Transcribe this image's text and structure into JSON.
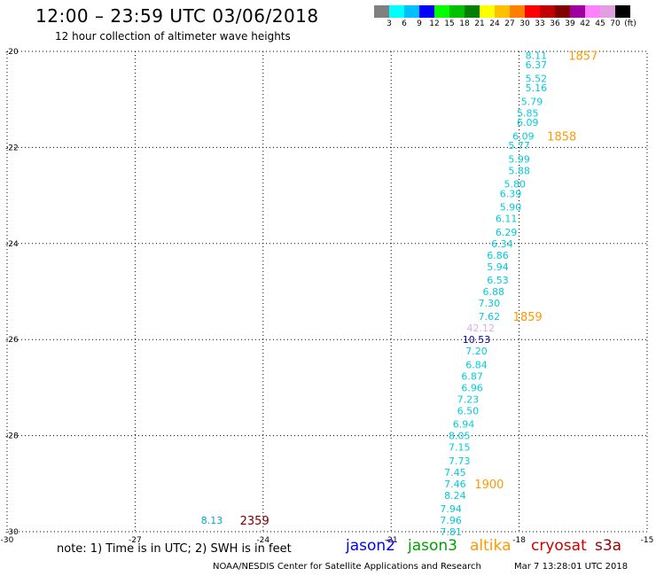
{
  "header": {
    "title": "12:00 – 23:59 UTC 03/06/2018",
    "subtitle": "12 hour collection of altimeter wave heights"
  },
  "legend": {
    "colors": [
      "#808080",
      "#00ffff",
      "#00c0ff",
      "#0000ff",
      "#00ff00",
      "#00c000",
      "#008000",
      "#ffff00",
      "#ffc000",
      "#ff8000",
      "#ff0000",
      "#c00000",
      "#800000",
      "#a000a0",
      "#ff80ff",
      "#e0a0e0",
      "#000000"
    ],
    "labels": [
      "3",
      "6",
      "9",
      "12",
      "15",
      "18",
      "21",
      "24",
      "27",
      "30",
      "33",
      "36",
      "39",
      "42",
      "45",
      "70",
      "(ft)"
    ]
  },
  "footer": {
    "note": "note: 1) Time is in UTC; 2) SWH is in feet",
    "missions": [
      {
        "name": "jason2",
        "color": "#0000ff"
      },
      {
        "name": "jason3",
        "color": "#00a000"
      },
      {
        "name": "altika",
        "color": "#ff9900"
      },
      {
        "name": "cryosat",
        "color": "#cc0000"
      },
      {
        "name": "s3a",
        "color": "#990000"
      }
    ],
    "credit": "NOAA/NESDIS Center for Satellite Applications and Research",
    "timestamp": "Mar  7 13:28:01 UTC 2018"
  },
  "chart_data": {
    "type": "scatter",
    "xlim": [
      -30,
      -15
    ],
    "ylim": [
      -30,
      -20
    ],
    "grid": true,
    "xticks": [
      "-30",
      "-27",
      "-24",
      "-21",
      "-18",
      "-15"
    ],
    "yticks": [
      "-20",
      "-22",
      "-24",
      "-26",
      "-28",
      "-30"
    ],
    "points": [
      {
        "lon": -17.6,
        "lat": -20.08,
        "value": "8.11",
        "color": "#00ccdd"
      },
      {
        "lon": -17.6,
        "lat": -20.28,
        "value": "6.37",
        "color": "#00ccdd"
      },
      {
        "lon": -17.6,
        "lat": -20.56,
        "value": "5.52",
        "color": "#00ccdd"
      },
      {
        "lon": -17.6,
        "lat": -20.76,
        "value": "5.16",
        "color": "#00ccdd"
      },
      {
        "lon": -17.7,
        "lat": -21.04,
        "value": "5.79",
        "color": "#00ccdd"
      },
      {
        "lon": -17.8,
        "lat": -21.28,
        "value": "5.85",
        "color": "#00ccdd"
      },
      {
        "lon": -17.8,
        "lat": -21.48,
        "value": "6.09",
        "color": "#00ccdd"
      },
      {
        "lon": -17.9,
        "lat": -21.76,
        "value": "6.09",
        "color": "#00ccdd"
      },
      {
        "lon": -18.0,
        "lat": -21.96,
        "value": "5.77",
        "color": "#00ccdd"
      },
      {
        "lon": -18.0,
        "lat": -22.24,
        "value": "5.99",
        "color": "#00ccdd"
      },
      {
        "lon": -18.0,
        "lat": -22.48,
        "value": "5.88",
        "color": "#00ccdd"
      },
      {
        "lon": -18.1,
        "lat": -22.76,
        "value": "5.80",
        "color": "#00ccdd"
      },
      {
        "lon": -18.2,
        "lat": -22.96,
        "value": "6.39",
        "color": "#00ccdd"
      },
      {
        "lon": -18.2,
        "lat": -23.24,
        "value": "5.90",
        "color": "#00ccdd"
      },
      {
        "lon": -18.3,
        "lat": -23.48,
        "value": "6.11",
        "color": "#00ccdd"
      },
      {
        "lon": -18.3,
        "lat": -23.76,
        "value": "6.29",
        "color": "#00ccdd"
      },
      {
        "lon": -18.4,
        "lat": -24.0,
        "value": "6.34",
        "color": "#00ccdd"
      },
      {
        "lon": -18.5,
        "lat": -24.24,
        "value": "6.86",
        "color": "#00ccdd"
      },
      {
        "lon": -18.5,
        "lat": -24.48,
        "value": "5.94",
        "color": "#00ccdd"
      },
      {
        "lon": -18.5,
        "lat": -24.76,
        "value": "6.53",
        "color": "#00ccdd"
      },
      {
        "lon": -18.6,
        "lat": -25.0,
        "value": "6.88",
        "color": "#00ccdd"
      },
      {
        "lon": -18.7,
        "lat": -25.24,
        "value": "7.30",
        "color": "#00ccdd"
      },
      {
        "lon": -18.7,
        "lat": -25.52,
        "value": "7.62",
        "color": "#00ccdd"
      },
      {
        "lon": -18.9,
        "lat": -25.76,
        "value": "42.12",
        "color": "#d8b0e8"
      },
      {
        "lon": -19.0,
        "lat": -26.0,
        "value": "10.53",
        "color": "#0000aa"
      },
      {
        "lon": -19.0,
        "lat": -26.24,
        "value": "7.20",
        "color": "#00ccdd"
      },
      {
        "lon": -19.0,
        "lat": -26.52,
        "value": "6.84",
        "color": "#00ccdd"
      },
      {
        "lon": -19.1,
        "lat": -26.76,
        "value": "6.87",
        "color": "#00ccdd"
      },
      {
        "lon": -19.1,
        "lat": -27.0,
        "value": "6.96",
        "color": "#00ccdd"
      },
      {
        "lon": -19.2,
        "lat": -27.24,
        "value": "7.23",
        "color": "#00ccdd"
      },
      {
        "lon": -19.2,
        "lat": -27.48,
        "value": "6.50",
        "color": "#00ccdd"
      },
      {
        "lon": -19.3,
        "lat": -27.76,
        "value": "6.94",
        "color": "#00ccdd"
      },
      {
        "lon": -19.4,
        "lat": -28.0,
        "value": "8.05",
        "color": "#00ccdd"
      },
      {
        "lon": -19.4,
        "lat": -28.24,
        "value": "7.15",
        "color": "#00ccdd"
      },
      {
        "lon": -19.4,
        "lat": -28.52,
        "value": "7.73",
        "color": "#00ccdd"
      },
      {
        "lon": -19.5,
        "lat": -28.76,
        "value": "7.45",
        "color": "#00ccdd"
      },
      {
        "lon": -19.5,
        "lat": -29.0,
        "value": "7.46",
        "color": "#00ccdd"
      },
      {
        "lon": -19.5,
        "lat": -29.24,
        "value": "8.24",
        "color": "#00ccdd"
      },
      {
        "lon": -19.6,
        "lat": -29.52,
        "value": "7.94",
        "color": "#00ccdd"
      },
      {
        "lon": -19.6,
        "lat": -29.76,
        "value": "7.96",
        "color": "#00ccdd"
      },
      {
        "lon": -19.6,
        "lat": -30.0,
        "value": "7.81",
        "color": "#00ccdd"
      },
      {
        "lon": -25.2,
        "lat": -29.76,
        "value": "8.13",
        "color": "#00aacc"
      }
    ],
    "time_labels": [
      {
        "lon": -16.5,
        "lat": -20.08,
        "text": "1857",
        "color": "#ff9900"
      },
      {
        "lon": -17.0,
        "lat": -21.76,
        "text": "1858",
        "color": "#ff9900"
      },
      {
        "lon": -17.8,
        "lat": -25.52,
        "text": "1859",
        "color": "#ff9900"
      },
      {
        "lon": -18.7,
        "lat": -29.0,
        "text": "1900",
        "color": "#ff9900"
      },
      {
        "lon": -24.2,
        "lat": -29.76,
        "text": "2359",
        "color": "#770000"
      }
    ]
  }
}
